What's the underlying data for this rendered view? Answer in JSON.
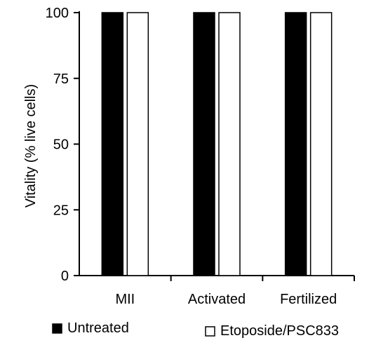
{
  "chart_data": {
    "type": "bar",
    "title": "",
    "xlabel": "",
    "ylabel": "Vitality (% live cells)",
    "ylim": [
      0,
      100
    ],
    "yticks": [
      0,
      25,
      50,
      75,
      100
    ],
    "categories": [
      "MII",
      "Activated",
      "Fertilized"
    ],
    "series": [
      {
        "name": "Untreated",
        "values": [
          100,
          100,
          100
        ],
        "color": "#000000"
      },
      {
        "name": "Etoposide/PSC833",
        "values": [
          100,
          100,
          100
        ],
        "color": "#ffffff"
      }
    ],
    "legend_position": "bottom",
    "grid": false
  }
}
